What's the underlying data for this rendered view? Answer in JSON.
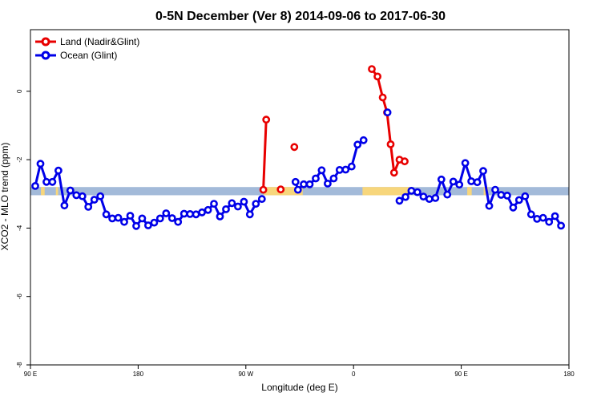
{
  "chart_data": {
    "type": "line",
    "title": "0-5N December (Ver 8)   2014-09-06 to 2017-06-30",
    "xlabel": "Longitude (deg E)",
    "ylabel": "XCO2 - MLO trend (ppm)",
    "xlim": [
      0,
      360
    ],
    "ylim": [
      -8,
      2
    ],
    "x_ticks": [
      {
        "value": 0,
        "label": "90 E"
      },
      {
        "value": 72,
        "label": "180"
      },
      {
        "value": 144,
        "label": "90 W"
      },
      {
        "value": 216,
        "label": "0"
      },
      {
        "value": 288,
        "label": "90 E"
      },
      {
        "value": 360,
        "label": "180"
      }
    ],
    "y_ticks": [
      {
        "value": 0,
        "label": "0"
      },
      {
        "value": -2,
        "label": "-2"
      },
      {
        "value": -4,
        "label": "-4"
      },
      {
        "value": -6,
        "label": "-6"
      },
      {
        "value": -8,
        "label": "-8"
      }
    ],
    "legend_position": "top-left",
    "surface_band": {
      "y_range": [
        -3.04,
        -2.8
      ],
      "ocean_color": "#a3bad9",
      "land_color": "#f7d67c",
      "land_segments": [
        [
          7,
          9.5
        ],
        [
          17,
          18.5
        ],
        [
          156,
          182
        ],
        [
          222,
          254
        ],
        [
          292,
          295
        ],
        [
          303,
          306
        ]
      ]
    },
    "series": [
      {
        "name": "Land (Nadir&Glint)",
        "color": "#e80000",
        "segments": [
          [
            [
              155.7,
              -2.88
            ],
            [
              157.6,
              -0.83
            ]
          ],
          [
            [
              167.3,
              -2.87
            ]
          ],
          [
            [
              176.4,
              -1.63
            ]
          ],
          [
            [
              228.2,
              0.65
            ],
            [
              232.0,
              0.43
            ],
            [
              235.5,
              -0.18
            ],
            [
              238.4,
              -0.62
            ],
            [
              240.8,
              -1.55
            ],
            [
              243.1,
              -2.38
            ],
            [
              246.7,
              -2.0
            ],
            [
              250.2,
              -2.05
            ]
          ]
        ]
      },
      {
        "name": "Ocean (Glint)",
        "color": "#0000e8",
        "segments": [
          [
            [
              3.2,
              -2.77
            ],
            [
              6.7,
              -2.12
            ],
            [
              10.7,
              -2.65
            ],
            [
              14.7,
              -2.65
            ],
            [
              18.7,
              -2.32
            ],
            [
              22.7,
              -3.34
            ],
            [
              26.7,
              -2.9
            ],
            [
              30.7,
              -3.04
            ],
            [
              34.7,
              -3.07
            ],
            [
              38.7,
              -3.38
            ],
            [
              42.7,
              -3.17
            ],
            [
              46.7,
              -3.07
            ],
            [
              50.7,
              -3.6
            ],
            [
              54.7,
              -3.72
            ],
            [
              58.7,
              -3.7
            ],
            [
              62.7,
              -3.82
            ],
            [
              66.7,
              -3.64
            ],
            [
              70.7,
              -3.94
            ],
            [
              74.7,
              -3.72
            ],
            [
              78.7,
              -3.92
            ],
            [
              82.7,
              -3.84
            ],
            [
              86.7,
              -3.72
            ],
            [
              90.7,
              -3.57
            ],
            [
              94.7,
              -3.71
            ],
            [
              98.7,
              -3.82
            ],
            [
              102.7,
              -3.58
            ],
            [
              106.7,
              -3.59
            ],
            [
              110.7,
              -3.6
            ],
            [
              114.7,
              -3.54
            ],
            [
              118.7,
              -3.47
            ],
            [
              122.7,
              -3.29
            ],
            [
              126.7,
              -3.66
            ],
            [
              130.7,
              -3.45
            ],
            [
              134.7,
              -3.27
            ],
            [
              138.7,
              -3.37
            ],
            [
              142.7,
              -3.23
            ],
            [
              146.7,
              -3.6
            ],
            [
              150.7,
              -3.29
            ],
            [
              154.7,
              -3.15
            ]
          ],
          [
            [
              177.2,
              -2.65
            ],
            [
              178.8,
              -2.88
            ],
            [
              182.7,
              -2.72
            ],
            [
              186.7,
              -2.72
            ],
            [
              190.7,
              -2.55
            ],
            [
              194.7,
              -2.31
            ],
            [
              198.7,
              -2.7
            ],
            [
              202.7,
              -2.55
            ],
            [
              206.7,
              -2.3
            ],
            [
              210.7,
              -2.29
            ],
            [
              214.7,
              -2.2
            ],
            [
              218.7,
              -1.56
            ],
            [
              222.7,
              -1.43
            ]
          ],
          [
            [
              238.7,
              -0.62
            ]
          ],
          [
            [
              246.7,
              -3.2
            ],
            [
              250.7,
              -3.09
            ],
            [
              254.7,
              -2.91
            ],
            [
              258.7,
              -2.95
            ],
            [
              262.7,
              -3.08
            ],
            [
              266.7,
              -3.15
            ],
            [
              270.7,
              -3.12
            ],
            [
              274.7,
              -2.58
            ],
            [
              278.7,
              -3.02
            ],
            [
              282.7,
              -2.64
            ],
            [
              286.7,
              -2.73
            ],
            [
              290.7,
              -2.1
            ],
            [
              294.7,
              -2.63
            ],
            [
              298.7,
              -2.66
            ],
            [
              302.7,
              -2.33
            ],
            [
              306.7,
              -3.35
            ],
            [
              310.7,
              -2.88
            ],
            [
              314.7,
              -3.03
            ],
            [
              318.7,
              -3.05
            ],
            [
              322.7,
              -3.4
            ],
            [
              326.7,
              -3.18
            ],
            [
              330.7,
              -3.07
            ],
            [
              334.7,
              -3.6
            ],
            [
              338.7,
              -3.73
            ],
            [
              342.7,
              -3.7
            ],
            [
              346.7,
              -3.82
            ],
            [
              350.7,
              -3.65
            ],
            [
              354.7,
              -3.93
            ]
          ]
        ]
      }
    ]
  }
}
